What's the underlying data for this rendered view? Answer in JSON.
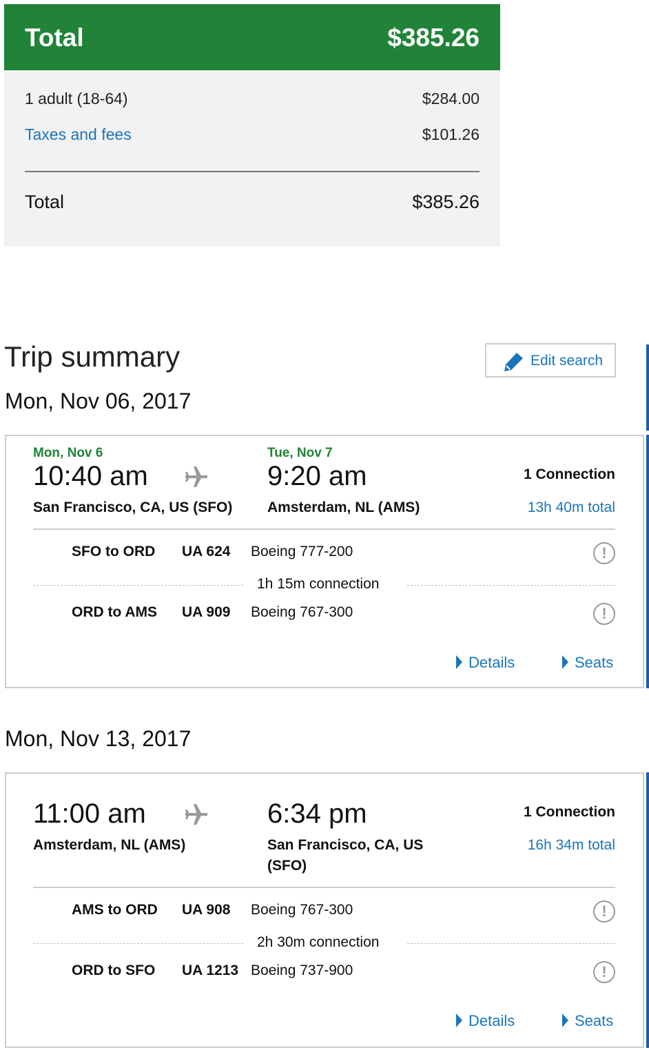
{
  "price": {
    "header_label": "Total",
    "header_amount": "$385.26",
    "rows": [
      {
        "label": "1 adult (18-64)",
        "amount": "$284.00"
      },
      {
        "label": "Taxes and fees",
        "amount": "$101.26"
      }
    ],
    "total_label": "Total",
    "total_amount": "$385.26"
  },
  "trip": {
    "title": "Trip summary",
    "edit_label": "Edit search",
    "edit_icon": "pencil-icon",
    "flights": [
      {
        "date_heading": "Mon, Nov 06, 2017",
        "dep_date": "Mon, Nov 6",
        "dep_time": "10:40 am",
        "dep_city": "San Francisco, CA, US (SFO)",
        "arr_date": "Tue, Nov 7",
        "arr_time": "9:20 am",
        "arr_city": "Amsterdam, NL (AMS)",
        "connections": "1 Connection",
        "duration": "13h 40m total",
        "segments": [
          {
            "route": "SFO to ORD",
            "flight": "UA 624",
            "aircraft": "Boeing 777-200"
          },
          {
            "route": "ORD to AMS",
            "flight": "UA 909",
            "aircraft": "Boeing 767-300"
          }
        ],
        "layover": "1h 15m connection",
        "details_label": "Details",
        "seats_label": "Seats"
      },
      {
        "date_heading": "Mon, Nov 13, 2017",
        "dep_time": "11:00 am",
        "dep_city": "Amsterdam, NL (AMS)",
        "arr_time": "6:34 pm",
        "arr_city": "San Francisco, CA, US",
        "arr_city_line2": "(SFO)",
        "connections": "1 Connection",
        "duration": "16h 34m total",
        "segments": [
          {
            "route": "AMS to ORD",
            "flight": "UA 908",
            "aircraft": "Boeing 767-300"
          },
          {
            "route": "ORD to SFO",
            "flight": "UA 1213",
            "aircraft": "Boeing 737-900"
          }
        ],
        "layover": "2h 30m connection",
        "details_label": "Details",
        "seats_label": "Seats"
      }
    ]
  },
  "colors": {
    "brand_green": "#208337",
    "link_blue": "#1a75bb",
    "panel_gray": "#f2f2f2"
  }
}
